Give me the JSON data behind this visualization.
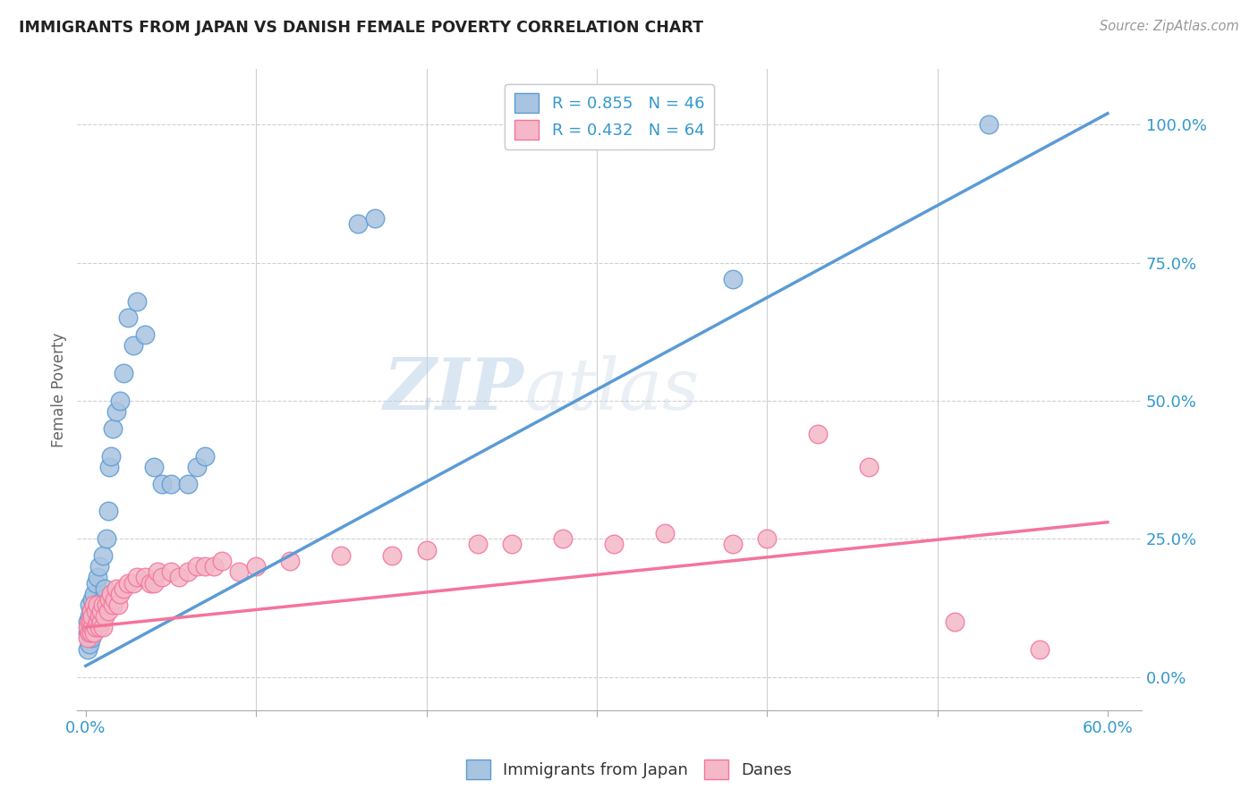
{
  "title": "IMMIGRANTS FROM JAPAN VS DANISH FEMALE POVERTY CORRELATION CHART",
  "source": "Source: ZipAtlas.com",
  "ylabel": "Female Poverty",
  "right_yticks": [
    "0.0%",
    "25.0%",
    "50.0%",
    "75.0%",
    "100.0%"
  ],
  "right_ytick_vals": [
    0.0,
    0.25,
    0.5,
    0.75,
    1.0
  ],
  "legend_entries": [
    {
      "label": "R = 0.855   N = 46",
      "color": "#a8c4e0"
    },
    {
      "label": "R = 0.432   N = 64",
      "color": "#f4a8b8"
    }
  ],
  "legend_bottom": [
    {
      "label": "Immigrants from Japan",
      "color": "#a8c4e0"
    },
    {
      "label": "Danes",
      "color": "#f4a8b8"
    }
  ],
  "blue_scatter_x": [
    0.001,
    0.001,
    0.001,
    0.002,
    0.002,
    0.002,
    0.002,
    0.003,
    0.003,
    0.003,
    0.004,
    0.004,
    0.005,
    0.005,
    0.006,
    0.006,
    0.007,
    0.007,
    0.008,
    0.008,
    0.009,
    0.01,
    0.01,
    0.011,
    0.012,
    0.013,
    0.014,
    0.015,
    0.016,
    0.018,
    0.02,
    0.022,
    0.025,
    0.028,
    0.03,
    0.035,
    0.04,
    0.045,
    0.05,
    0.06,
    0.065,
    0.07,
    0.16,
    0.17,
    0.38,
    0.53
  ],
  "blue_scatter_y": [
    0.05,
    0.08,
    0.1,
    0.06,
    0.09,
    0.11,
    0.13,
    0.07,
    0.1,
    0.12,
    0.08,
    0.14,
    0.09,
    0.15,
    0.1,
    0.17,
    0.11,
    0.18,
    0.12,
    0.2,
    0.13,
    0.14,
    0.22,
    0.16,
    0.25,
    0.3,
    0.38,
    0.4,
    0.45,
    0.48,
    0.5,
    0.55,
    0.65,
    0.6,
    0.68,
    0.62,
    0.38,
    0.35,
    0.35,
    0.35,
    0.38,
    0.4,
    0.82,
    0.83,
    0.72,
    1.0
  ],
  "pink_scatter_x": [
    0.001,
    0.001,
    0.002,
    0.002,
    0.003,
    0.003,
    0.003,
    0.004,
    0.004,
    0.005,
    0.005,
    0.006,
    0.006,
    0.007,
    0.007,
    0.008,
    0.008,
    0.009,
    0.009,
    0.01,
    0.01,
    0.011,
    0.012,
    0.013,
    0.014,
    0.015,
    0.016,
    0.017,
    0.018,
    0.019,
    0.02,
    0.022,
    0.025,
    0.028,
    0.03,
    0.035,
    0.038,
    0.04,
    0.042,
    0.045,
    0.05,
    0.055,
    0.06,
    0.065,
    0.07,
    0.075,
    0.08,
    0.09,
    0.1,
    0.12,
    0.15,
    0.18,
    0.2,
    0.23,
    0.25,
    0.28,
    0.31,
    0.34,
    0.38,
    0.4,
    0.43,
    0.46,
    0.51,
    0.56
  ],
  "pink_scatter_y": [
    0.07,
    0.09,
    0.08,
    0.1,
    0.08,
    0.1,
    0.12,
    0.09,
    0.11,
    0.08,
    0.13,
    0.09,
    0.12,
    0.1,
    0.13,
    0.09,
    0.11,
    0.1,
    0.12,
    0.09,
    0.13,
    0.11,
    0.13,
    0.12,
    0.14,
    0.15,
    0.13,
    0.14,
    0.16,
    0.13,
    0.15,
    0.16,
    0.17,
    0.17,
    0.18,
    0.18,
    0.17,
    0.17,
    0.19,
    0.18,
    0.19,
    0.18,
    0.19,
    0.2,
    0.2,
    0.2,
    0.21,
    0.19,
    0.2,
    0.21,
    0.22,
    0.22,
    0.23,
    0.24,
    0.24,
    0.25,
    0.24,
    0.26,
    0.24,
    0.25,
    0.44,
    0.38,
    0.1,
    0.05
  ],
  "blue_line_x": [
    0.0,
    0.6
  ],
  "blue_line_y": [
    0.02,
    1.02
  ],
  "pink_line_x": [
    0.0,
    0.6
  ],
  "pink_line_y": [
    0.09,
    0.28
  ],
  "xlim": [
    -0.005,
    0.62
  ],
  "ylim": [
    -0.06,
    1.1
  ],
  "blue_color": "#5b9bd5",
  "pink_color": "#f4749b",
  "blue_scatter_color": "#a8c4e0",
  "pink_scatter_color": "#f4b8c8",
  "grid_color": "#d0d0d0",
  "watermark_zip": "ZIP",
  "watermark_atlas": "atlas",
  "background_color": "#ffffff"
}
